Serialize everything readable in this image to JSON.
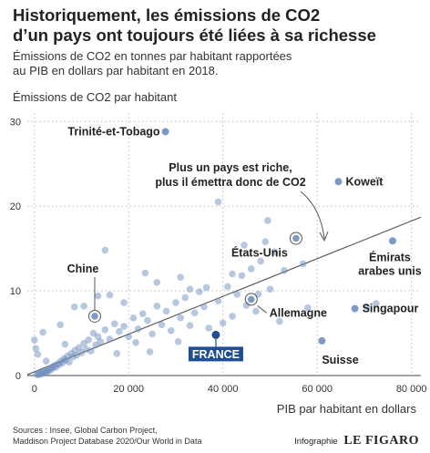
{
  "title_lines": [
    "Historiquement, les émissions de CO2",
    "d’un pays ont toujours été liées à sa richesse"
  ],
  "subtitle_lines": [
    "Émissions de CO2 en tonnes par habitant rapportées",
    "au PIB en dollars par habitant en 2018."
  ],
  "sources_lines": [
    "Sources : Insee, Global Carbon Project,",
    "Maddison Project Database 2020/Our World in Data"
  ],
  "credit": {
    "label": "Infographie",
    "brand": "LE FIGARO"
  },
  "chart_data": {
    "type": "scatter",
    "xlabel": "PIB par habitant en dollars",
    "ylabel": "Émissions de CO2 par habitant",
    "xlim": [
      -1500,
      82000
    ],
    "ylim": [
      0,
      31
    ],
    "x_ticks": [
      {
        "value": 0,
        "label": "0"
      },
      {
        "value": 20000,
        "label": "20 000"
      },
      {
        "value": 40000,
        "label": "40 000"
      },
      {
        "value": 60000,
        "label": "60 000"
      },
      {
        "value": 80000,
        "label": "80 000"
      }
    ],
    "y_ticks": [
      {
        "value": 0,
        "label": "0"
      },
      {
        "value": 10,
        "label": "10"
      },
      {
        "value": 20,
        "label": "20"
      },
      {
        "value": 30,
        "label": "30"
      }
    ],
    "grid": "dotted",
    "colors": {
      "points": "#6f8fbf",
      "highlight": "#1f4e96",
      "trend": "#555555"
    },
    "trend_line": {
      "from": [
        -1500,
        0.1
      ],
      "to": [
        82000,
        18.7
      ]
    },
    "callout": {
      "text_lines": [
        "Plus un pays est riche,",
        "plus il émettra donc de CO2"
      ]
    },
    "highlighted": [
      {
        "name": "Trinité-et-Tobago",
        "x": 27800,
        "y": 28.8
      },
      {
        "name": "Koweït",
        "x": 64500,
        "y": 22.9
      },
      {
        "name": "États-Unis",
        "x": 55500,
        "y": 16.2
      },
      {
        "name": "Émirats arabes unis",
        "x": 76000,
        "y": 15.9
      },
      {
        "name": "Chine",
        "x": 12800,
        "y": 7.0
      },
      {
        "name": "Allemagne",
        "x": 46000,
        "y": 9.0
      },
      {
        "name": "Singapour",
        "x": 68000,
        "y": 7.9
      },
      {
        "name": "Suisse",
        "x": 61000,
        "y": 4.1
      },
      {
        "name": "FRANCE",
        "x": 38500,
        "y": 4.8
      }
    ],
    "points": [
      [
        500,
        0.1
      ],
      [
        800,
        0.2
      ],
      [
        1000,
        0.1
      ],
      [
        1200,
        0.3
      ],
      [
        1500,
        0.2
      ],
      [
        1800,
        0.4
      ],
      [
        2000,
        0.3
      ],
      [
        2200,
        0.5
      ],
      [
        2500,
        0.4
      ],
      [
        2800,
        0.6
      ],
      [
        3000,
        0.5
      ],
      [
        3200,
        0.8
      ],
      [
        3500,
        0.7
      ],
      [
        3800,
        1.0
      ],
      [
        4000,
        0.9
      ],
      [
        4300,
        1.2
      ],
      [
        4600,
        1.0
      ],
      [
        5000,
        1.4
      ],
      [
        5300,
        1.3
      ],
      [
        5600,
        1.7
      ],
      [
        6000,
        1.5
      ],
      [
        6300,
        2.0
      ],
      [
        6600,
        1.8
      ],
      [
        7000,
        2.3
      ],
      [
        7400,
        1.6
      ],
      [
        7800,
        2.6
      ],
      [
        8200,
        2.2
      ],
      [
        8600,
        3.0
      ],
      [
        9000,
        2.4
      ],
      [
        9500,
        3.3
      ],
      [
        10000,
        2.7
      ],
      [
        10500,
        3.8
      ],
      [
        11000,
        3.1
      ],
      [
        11500,
        4.2
      ],
      [
        12000,
        2.9
      ],
      [
        12500,
        5.0
      ],
      [
        13000,
        3.6
      ],
      [
        13500,
        4.6
      ],
      [
        14000,
        4.0
      ],
      [
        15000,
        5.4
      ],
      [
        16000,
        4.3
      ],
      [
        17000,
        6.1
      ],
      [
        18000,
        5.2
      ],
      [
        19000,
        5.8
      ],
      [
        20000,
        4.6
      ],
      [
        21000,
        6.8
      ],
      [
        22000,
        5.5
      ],
      [
        23000,
        7.3
      ],
      [
        24000,
        6.5
      ],
      [
        25000,
        4.9
      ],
      [
        26000,
        8.2
      ],
      [
        27000,
        6.0
      ],
      [
        28000,
        7.6
      ],
      [
        29000,
        5.3
      ],
      [
        30000,
        8.6
      ],
      [
        31000,
        6.8
      ],
      [
        32000,
        9.2
      ],
      [
        33000,
        5.9
      ],
      [
        34000,
        7.4
      ],
      [
        35000,
        9.9
      ],
      [
        36000,
        8.1
      ],
      [
        37000,
        5.6
      ],
      [
        39000,
        8.8
      ],
      [
        40000,
        6.2
      ],
      [
        41000,
        10.5
      ],
      [
        42000,
        7.0
      ],
      [
        43000,
        9.6
      ],
      [
        44000,
        11.8
      ],
      [
        45000,
        8.3
      ],
      [
        46000,
        12.6
      ],
      [
        47000,
        7.6
      ],
      [
        48000,
        13.5
      ],
      [
        49000,
        15.8
      ],
      [
        50000,
        10.2
      ],
      [
        51000,
        14.6
      ],
      [
        52000,
        6.4
      ],
      [
        53000,
        12.4
      ],
      [
        49500,
        18.3
      ],
      [
        44500,
        15.4
      ],
      [
        39000,
        20.5
      ],
      [
        58000,
        8.0
      ],
      [
        57000,
        13.2
      ],
      [
        70500,
        8.1
      ],
      [
        72500,
        8.5
      ],
      [
        15000,
        14.8
      ],
      [
        16000,
        9.5
      ],
      [
        33000,
        10.2
      ],
      [
        36500,
        10.4
      ],
      [
        23500,
        12.1
      ],
      [
        8500,
        8.1
      ],
      [
        5500,
        6.0
      ],
      [
        0,
        4.2
      ],
      [
        300,
        3.2
      ],
      [
        700,
        2.5
      ],
      [
        2500,
        1.7
      ],
      [
        10500,
        8.2
      ],
      [
        13500,
        9.4
      ],
      [
        19000,
        8.6
      ],
      [
        26000,
        11.0
      ],
      [
        31000,
        11.6
      ],
      [
        42000,
        12.0
      ],
      [
        47500,
        9.6
      ],
      [
        1800,
        5.1
      ],
      [
        6500,
        3.7
      ],
      [
        17500,
        2.6
      ],
      [
        21500,
        3.9
      ],
      [
        24500,
        2.8
      ],
      [
        30500,
        4.0
      ]
    ]
  }
}
